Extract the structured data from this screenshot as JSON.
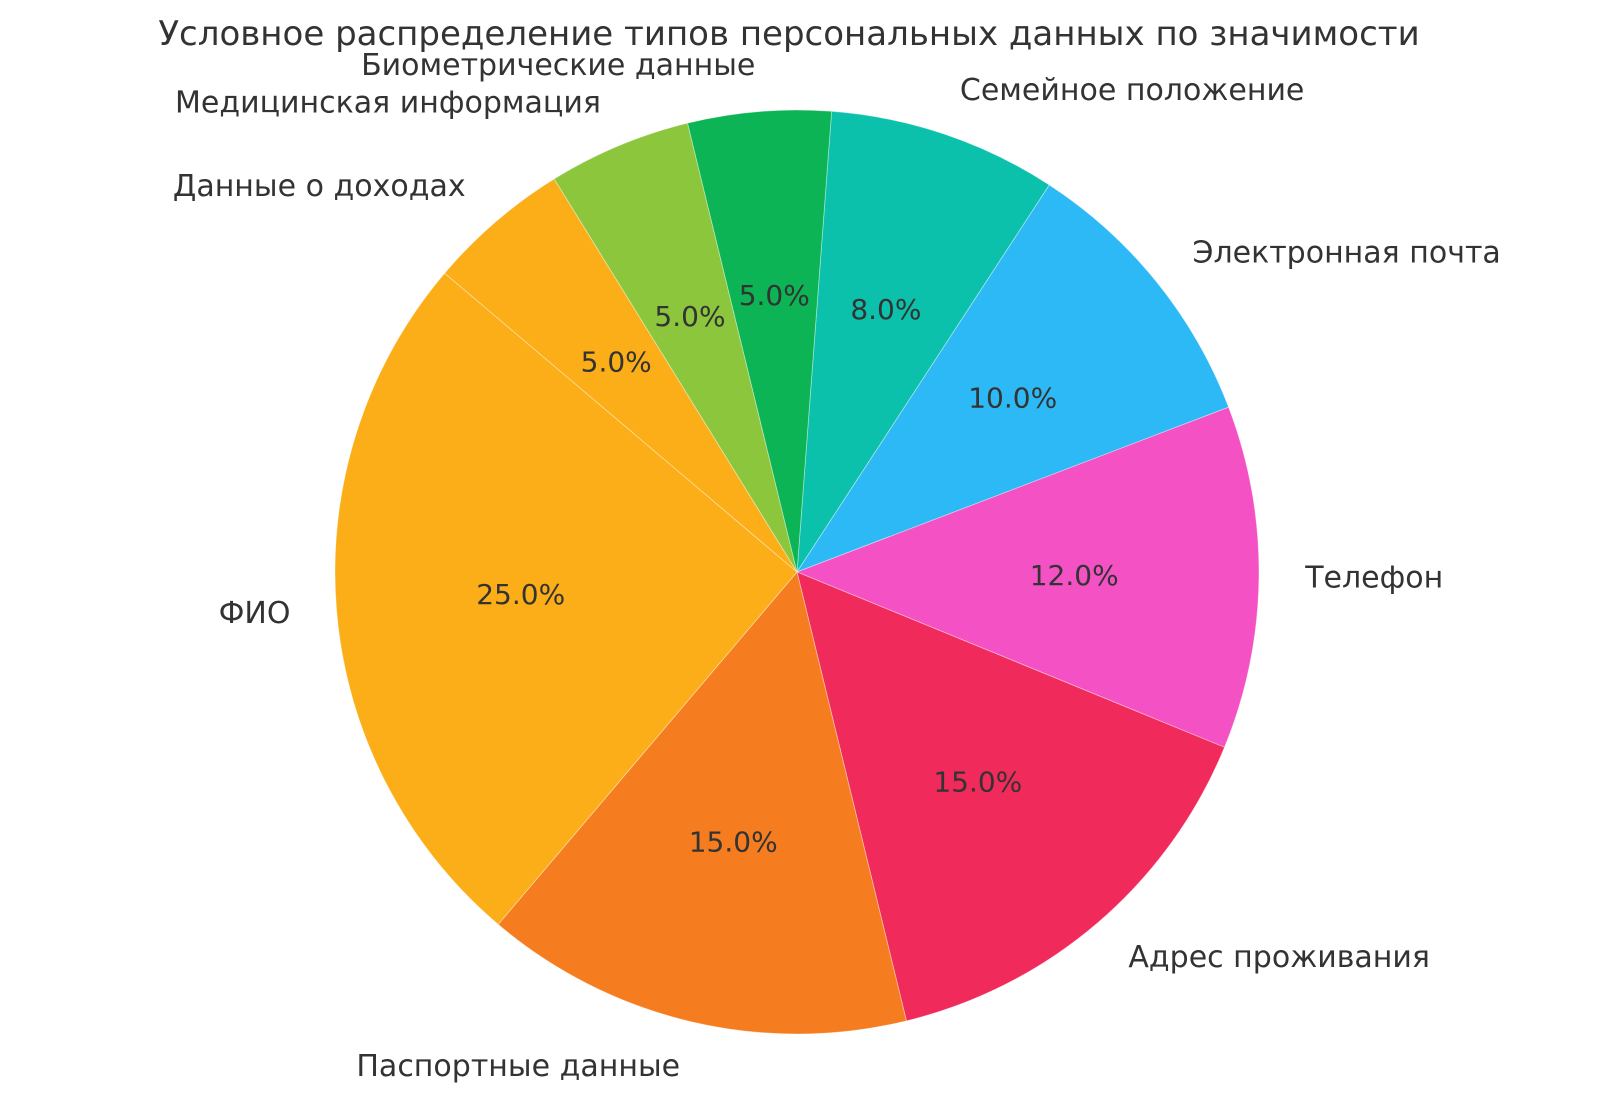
{
  "page": {
    "background_color": "#ffffff",
    "text_color": "#333333"
  },
  "chart_data": {
    "type": "pie",
    "title": "Условное распределение типов персональных данных по значимости",
    "title_color": "#333333",
    "label_color": "#333333",
    "pct_label_color": "#333333",
    "legend": "none",
    "direction": "clockwise",
    "start_angle_deg_clockwise_from_top": 4.3,
    "label_distance": 1.1,
    "pct_distance": 0.6,
    "slices": [
      {
        "label": "Семейное положение",
        "value": 8.0,
        "pct_label": "8.0%",
        "color": "#0BC1AB"
      },
      {
        "label": "Электронная почта",
        "value": 10.0,
        "pct_label": "10.0%",
        "color": "#2DB9F6"
      },
      {
        "label": "Телефон",
        "value": 12.0,
        "pct_label": "12.0%",
        "color": "#F452C4"
      },
      {
        "label": "Адрес проживания",
        "value": 15.0,
        "pct_label": "15.0%",
        "color": "#F12A5C"
      },
      {
        "label": "Паспортные данные",
        "value": 15.0,
        "pct_label": "15.0%",
        "color": "#F57D20"
      },
      {
        "label": "ФИО",
        "value": 25.0,
        "pct_label": "25.0%",
        "color": "#FBAE17"
      },
      {
        "label": "Данные о доходах",
        "value": 5.0,
        "pct_label": "5.0%",
        "color": "#FBAE17"
      },
      {
        "label": "Медицинская информация",
        "value": 5.0,
        "pct_label": "5.0%",
        "color": "#8CC63D"
      },
      {
        "label": "Биометрические данные",
        "value": 5.0,
        "pct_label": "5.0%",
        "color": "#0CB455"
      }
    ]
  }
}
